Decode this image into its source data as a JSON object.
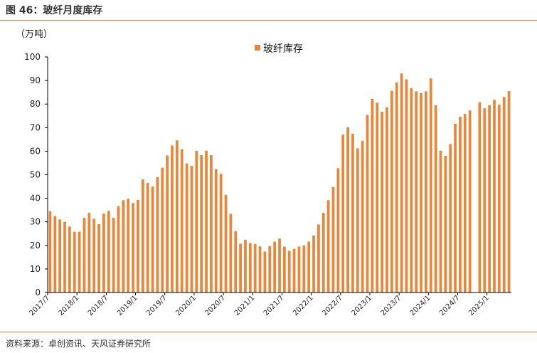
{
  "header": {
    "figure_title": "图 46：玻纤月度库存"
  },
  "footer": {
    "source": "资料来源：卓创资讯、天风证券研究所"
  },
  "colors": {
    "bar": "#E8873A",
    "rule": "#E07B39",
    "axis": "#000000"
  },
  "chart_data": {
    "type": "bar",
    "title": "",
    "unit_label": "（万吨）",
    "ylim": [
      0,
      100
    ],
    "yticks": [
      0,
      10,
      20,
      30,
      40,
      50,
      60,
      70,
      80,
      90,
      100
    ],
    "grid": false,
    "legend_position": "top",
    "series": [
      {
        "name": "玻纤库存",
        "values": [
          34.5,
          32.5,
          31,
          30,
          28,
          25.8,
          25.8,
          31.7,
          33.8,
          31.3,
          29,
          33.5,
          34.7,
          31.7,
          36.6,
          39.2,
          39.8,
          38,
          39.3,
          48,
          46.5,
          45,
          49,
          53,
          58.2,
          62.4,
          64.6,
          60.8,
          54.8,
          53.8,
          60.2,
          58.3,
          60.2,
          58.3,
          52.4,
          50.4,
          41.5,
          33.4,
          26,
          20.7,
          22.4,
          21,
          20.6,
          19.6,
          17.4,
          19.7,
          21.6,
          22.9,
          19.5,
          17.7,
          18.5,
          19.5,
          20,
          21.6,
          24.2,
          28.9,
          33.8,
          39.2,
          44.8,
          52.8,
          67,
          70.2,
          67.4,
          61.2,
          64.4,
          75.4,
          82.2,
          80.6,
          76.7,
          78.6,
          85.6,
          89.2,
          93,
          90.5,
          86.8,
          85.4,
          84.6,
          85.4,
          90.9,
          79.5,
          60.2,
          58,
          63,
          71.6,
          74.6,
          75.8,
          77.3,
          null,
          80.8,
          78.2,
          79.5,
          81.8,
          79.8,
          83,
          85.5
        ]
      }
    ],
    "x_start": "2017/7",
    "x_tick_labels": [
      "2017/7",
      "2018/1",
      "2018/7",
      "2019/1",
      "2019/7",
      "2020/1",
      "2020/7",
      "2021/1",
      "2021/7",
      "2022/1",
      "2022/7",
      "2023/1",
      "2023/7",
      "2024/1",
      "2024/7",
      "2025/1"
    ],
    "x_tick_indices": [
      0,
      6,
      12,
      18,
      24,
      30,
      36,
      42,
      48,
      54,
      60,
      66,
      72,
      78,
      84,
      90
    ]
  }
}
